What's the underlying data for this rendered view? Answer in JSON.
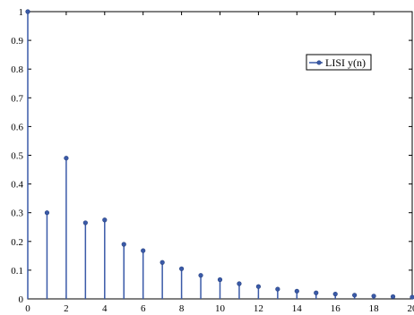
{
  "chart_data": {
    "type": "stem",
    "title": "",
    "xlabel": "",
    "ylabel": "",
    "xlim": [
      0,
      20
    ],
    "ylim": [
      0,
      1
    ],
    "xticks": [
      0,
      2,
      4,
      6,
      8,
      10,
      12,
      14,
      16,
      18,
      20
    ],
    "yticks": [
      0,
      0.1,
      0.2,
      0.3,
      0.4,
      0.5,
      0.6,
      0.7,
      0.8,
      0.9,
      1
    ],
    "xtick_labels": [
      "0",
      "2",
      "4",
      "6",
      "8",
      "10",
      "12",
      "14",
      "16",
      "18",
      "20"
    ],
    "ytick_labels": [
      "0",
      "0.1",
      "0.2",
      "0.3",
      "0.4",
      "0.5",
      "0.6",
      "0.7",
      "0.8",
      "0.9",
      "1"
    ],
    "grid": false,
    "legend_position": "top-right",
    "series": [
      {
        "name": "LISI y(n)",
        "color": "#3a5aa8",
        "x": [
          0,
          1,
          2,
          3,
          4,
          5,
          6,
          7,
          8,
          9,
          10,
          11,
          12,
          13,
          14,
          15,
          16,
          17,
          18,
          19,
          20
        ],
        "y": [
          1.0,
          0.3,
          0.49,
          0.265,
          0.275,
          0.19,
          0.168,
          0.127,
          0.105,
          0.082,
          0.067,
          0.053,
          0.043,
          0.034,
          0.027,
          0.021,
          0.017,
          0.013,
          0.01,
          0.008,
          0.006
        ]
      }
    ]
  }
}
